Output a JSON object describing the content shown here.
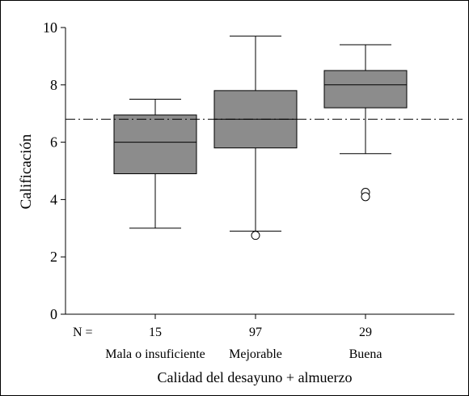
{
  "chart_data": {
    "type": "boxplot",
    "title": "",
    "xlabel": "Calidad del desayuno + almuerzo",
    "ylabel": "Calificación",
    "ylim": [
      0,
      10
    ],
    "yticks": [
      0,
      2,
      4,
      6,
      8,
      10
    ],
    "n_prefix": "N =",
    "reference_line": {
      "y": 6.8,
      "style": "dash-dot"
    },
    "box_color": "#8c8c8c",
    "categories": [
      "Mala o insuficiente",
      "Mejorable",
      "Buena"
    ],
    "counts": [
      "15",
      "97",
      "29"
    ],
    "boxes": [
      {
        "category": "Mala o insuficiente",
        "n": 15,
        "min": 3.0,
        "q1": 4.9,
        "median": 6.0,
        "q3": 6.95,
        "max": 7.5,
        "outliers": []
      },
      {
        "category": "Mejorable",
        "n": 97,
        "min": 2.9,
        "q1": 5.8,
        "median": 6.8,
        "q3": 7.8,
        "max": 9.7,
        "outliers": [
          2.75
        ]
      },
      {
        "category": "Buena",
        "n": 29,
        "min": 5.6,
        "q1": 7.2,
        "median": 8.0,
        "q3": 8.5,
        "max": 9.4,
        "outliers": [
          4.25,
          4.1
        ]
      }
    ]
  }
}
